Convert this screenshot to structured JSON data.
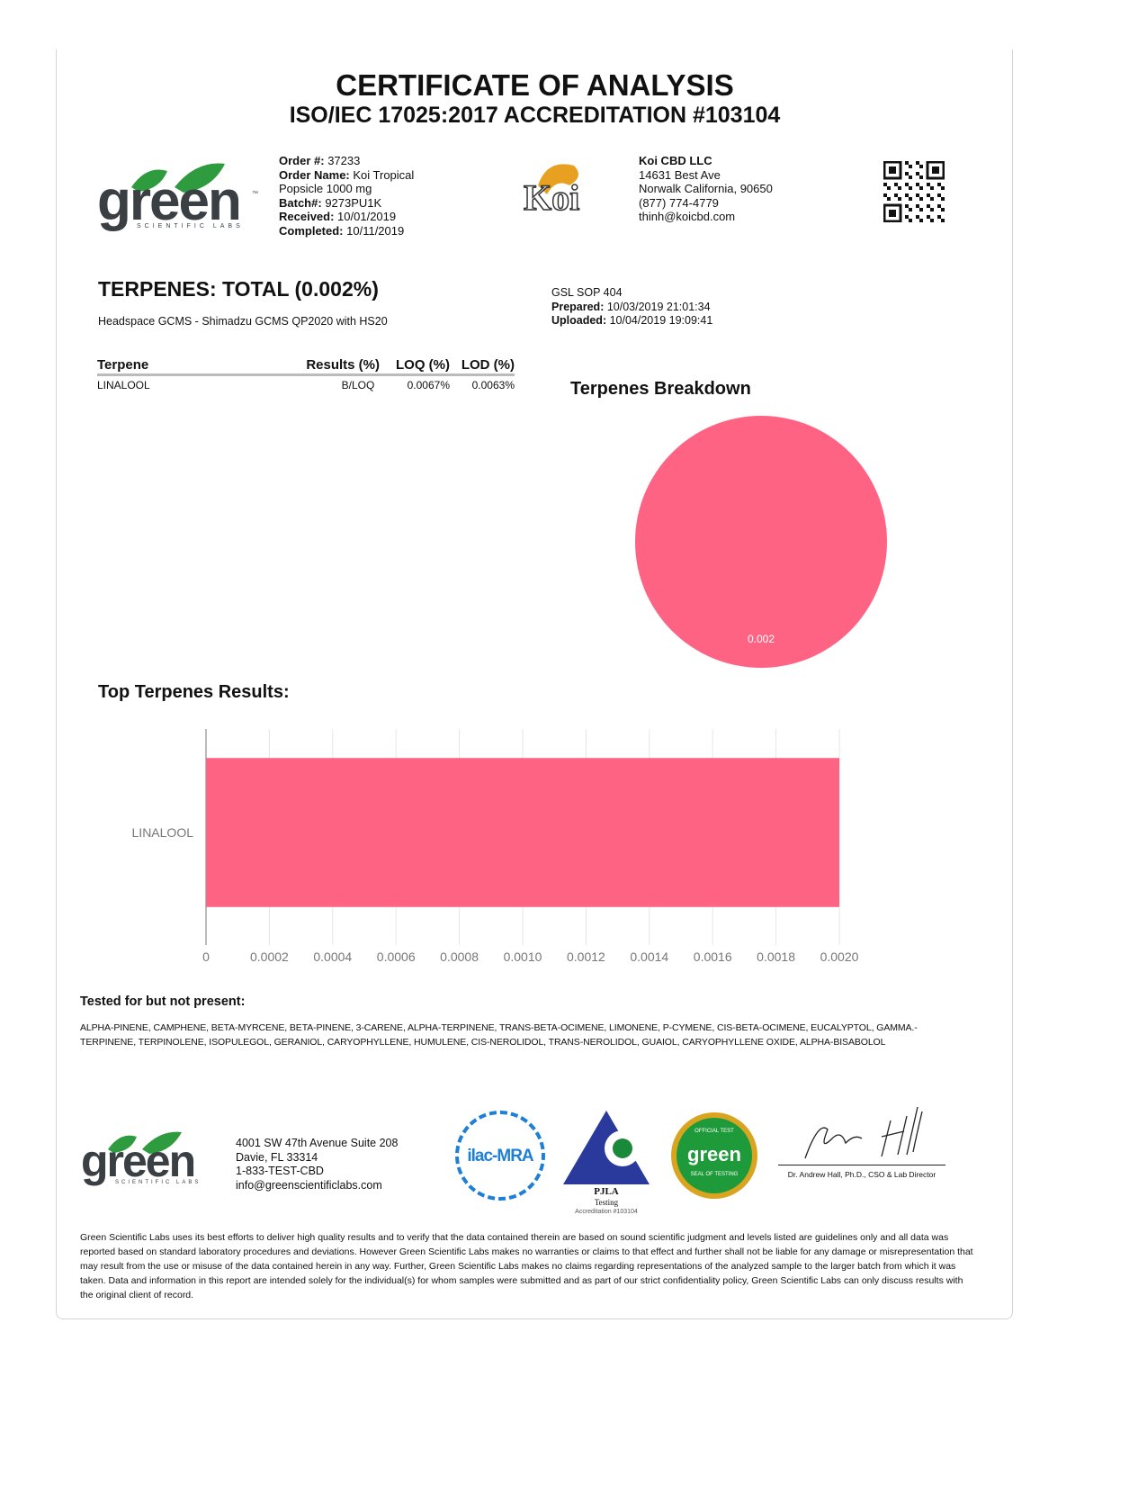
{
  "header": {
    "title": "CERTIFICATE OF ANALYSIS",
    "subtitle": "ISO/IEC 17025:2017 ACCREDITATION #103104"
  },
  "lab_logo": {
    "text": "green",
    "tagline": "SCIENTIFIC LABS",
    "tm": "™",
    "colors": {
      "leaf": "#2e9b3e",
      "text": "#3a3f44"
    }
  },
  "order": {
    "order_no_label": "Order #:",
    "order_no": "37233",
    "order_name_label": "Order Name:",
    "order_name_1": "Koi Tropical",
    "order_name_2": "Popsicle 1000 mg",
    "batch_label": "Batch#:",
    "batch": "9273PU1K",
    "received_label": "Received:",
    "received": "10/01/2019",
    "completed_label": "Completed:",
    "completed": "10/11/2019"
  },
  "client_logo": {
    "text": "Koi"
  },
  "client": {
    "name": "Koi CBD LLC",
    "address1": "14631 Best Ave",
    "address2": "Norwalk California, 90650",
    "phone": "(877) 774-4779",
    "email": "thinh@koicbd.com"
  },
  "section": {
    "title": "TERPENES: TOTAL (0.002%)",
    "method": "Headspace GCMS - Shimadzu GCMS QP2020 with HS20",
    "sop": "GSL SOP 404",
    "prepared_label": "Prepared:",
    "prepared": "10/03/2019 21:01:34",
    "uploaded_label": "Uploaded:",
    "uploaded": "10/04/2019 19:09:41"
  },
  "table": {
    "headers": [
      "Terpene",
      "Results (%)",
      "LOQ (%)",
      "LOD (%)"
    ],
    "rows": [
      [
        "LINALOOL",
        "B/LOQ",
        "0.0067%",
        "0.0063%"
      ]
    ]
  },
  "chart_data": [
    {
      "type": "pie",
      "title": "Terpenes Breakdown",
      "categories": [
        "LINALOOL"
      ],
      "values": [
        0.002
      ],
      "data_labels": [
        "0.002"
      ],
      "colors": [
        "#ff6384"
      ]
    },
    {
      "type": "bar",
      "orientation": "horizontal",
      "title": "Top Terpenes Results:",
      "categories": [
        "LINALOOL"
      ],
      "values": [
        0.002
      ],
      "xlim": [
        0,
        0.002
      ],
      "xticks": [
        "0",
        "0.0002",
        "0.0004",
        "0.0006",
        "0.0008",
        "0.0010",
        "0.0012",
        "0.0014",
        "0.0016",
        "0.0018",
        "0.0020"
      ],
      "grid": true,
      "colors": [
        "#ff6384"
      ]
    }
  ],
  "not_present": {
    "title": "Tested for but not present:",
    "line1": "ALPHA-PINENE, CAMPHENE, BETA-MYRCENE, BETA-PINENE, 3-CARENE, ALPHA-TERPINENE, TRANS-BETA-OCIMENE, LIMONENE, P-CYMENE, CIS-BETA-OCIMENE, EUCALYPTOL, GAMMA.-",
    "line2": "TERPINENE, TERPINOLENE, ISOPULEGOL, GERANIOL, CARYOPHYLLENE, HUMULENE, CIS-NEROLIDOL, TRANS-NEROLIDOL, GUAIOL, CARYOPHYLLENE OXIDE, ALPHA-BISABOLOL"
  },
  "footer": {
    "address1": "4001 SW 47th Avenue Suite 208",
    "address2": "Davie, FL 33314",
    "phone": "1-833-TEST-CBD",
    "email": "info@greenscientificlabs.com",
    "ilac": "ilac-MRA",
    "pjla": "PJLA",
    "pjla_sub": "Testing",
    "pjla_acc": "Accreditation #103104",
    "seal_top": "OFFICIAL TEST",
    "seal_mid": "green",
    "seal_bottom": "SEAL OF TESTING",
    "signer": "Dr. Andrew Hall, Ph.D., CSO & Lab Director",
    "disclaimer": [
      "Green Scientific Labs uses its best efforts to deliver high quality results and to verify that the data contained therein are based on sound scientific judgment and levels listed are guidelines only and all data was",
      "reported based on standard laboratory procedures and deviations. However Green Scientific Labs makes no warranties or claims to that effect and further shall not be liable for any damage or misrepresentation that",
      "may result from the use or misuse of the data contained herein in any way. Further, Green Scientific Labs makes no claims regarding representations of the analyzed sample to the larger batch from which it was",
      "taken. Data and information in this report are intended solely for the individual(s) for whom samples were submitted and as part of our strict confidentiality policy, Green Scientific Labs can only discuss results with",
      "the original client of record."
    ]
  }
}
